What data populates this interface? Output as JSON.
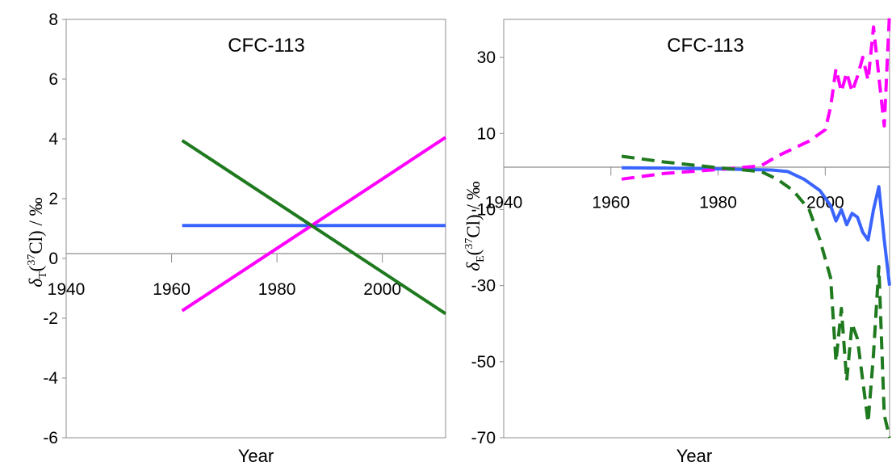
{
  "chart_data": [
    {
      "type": "line",
      "title": "CFC-113",
      "xlabel": "Year",
      "ylabel": {
        "symbol": "δ",
        "sub": "T",
        "open": "(",
        "sup": "37",
        "rest": "Cl) / ‰"
      },
      "xlim": [
        1940,
        2012
      ],
      "ylim": [
        -6,
        8
      ],
      "xticks": [
        "1940",
        "1960",
        "1980",
        "2000"
      ],
      "yticks": [
        "8",
        "6",
        "4",
        "2",
        "0",
        "-2",
        "-4",
        "-6"
      ],
      "grid": false,
      "series": [
        {
          "color": "#3a64ff",
          "dash": "solid",
          "x": [
            1962,
            2012
          ],
          "y": [
            1.1,
            1.1
          ]
        },
        {
          "color": "#ff00ff",
          "dash": "solid",
          "x": [
            1962,
            2012
          ],
          "y": [
            -1.75,
            4.05
          ]
        },
        {
          "color": "#1f7a1f",
          "dash": "solid",
          "x": [
            1962,
            2012
          ],
          "y": [
            3.95,
            -1.85
          ]
        }
      ]
    },
    {
      "type": "line",
      "title": "CFC-113",
      "xlabel": "Year",
      "ylabel": {
        "symbol": "δ",
        "sub": "E",
        "open": "(",
        "sup": "37",
        "rest": "Cl) / ‰"
      },
      "xlim": [
        1940,
        2012
      ],
      "ylim": [
        -70,
        40
      ],
      "xticks": [
        "1940",
        "1960",
        "1980",
        "2000"
      ],
      "yticks": [
        "30",
        "10",
        "-10",
        "-30",
        "-50",
        "-70"
      ],
      "grid": false,
      "series": [
        {
          "color": "#3a64ff",
          "dash": "solid",
          "x": [
            1962,
            1970,
            1980,
            1990,
            1993,
            1996,
            1999,
            2001,
            2002,
            2003,
            2004,
            2005,
            2006,
            2007,
            2008,
            2009,
            2010,
            2011,
            2012
          ],
          "y": [
            1,
            0.9,
            0.7,
            0.4,
            0,
            -2,
            -5,
            -9,
            -13,
            -10,
            -14,
            -11,
            -12,
            -16,
            -18,
            -10,
            -4,
            -18,
            -30
          ]
        },
        {
          "color": "#ff00ff",
          "dash": "dashed",
          "x": [
            1962,
            1970,
            1980,
            1988,
            1991,
            1994,
            1997,
            2000,
            2001,
            2002,
            2003,
            2004,
            2005,
            2006,
            2007,
            2008,
            2009,
            2010,
            2011,
            2012
          ],
          "y": [
            -2,
            -0.5,
            0.5,
            1.5,
            4,
            6,
            8,
            11,
            17,
            27,
            21,
            26,
            21,
            25,
            30,
            24,
            38,
            25,
            12,
            42
          ]
        },
        {
          "color": "#1f7a1f",
          "dash": "dashed",
          "x": [
            1962,
            1970,
            1980,
            1988,
            1991,
            1994,
            1997,
            1999,
            2001,
            2002,
            2003,
            2004,
            2005,
            2006,
            2007,
            2008,
            2009,
            2010,
            2011,
            2012
          ],
          "y": [
            4,
            2.5,
            1,
            0,
            -2,
            -5,
            -10,
            -18,
            -28,
            -50,
            -36,
            -55,
            -40,
            -44,
            -55,
            -66,
            -48,
            -25,
            -64,
            -70
          ]
        }
      ]
    }
  ]
}
